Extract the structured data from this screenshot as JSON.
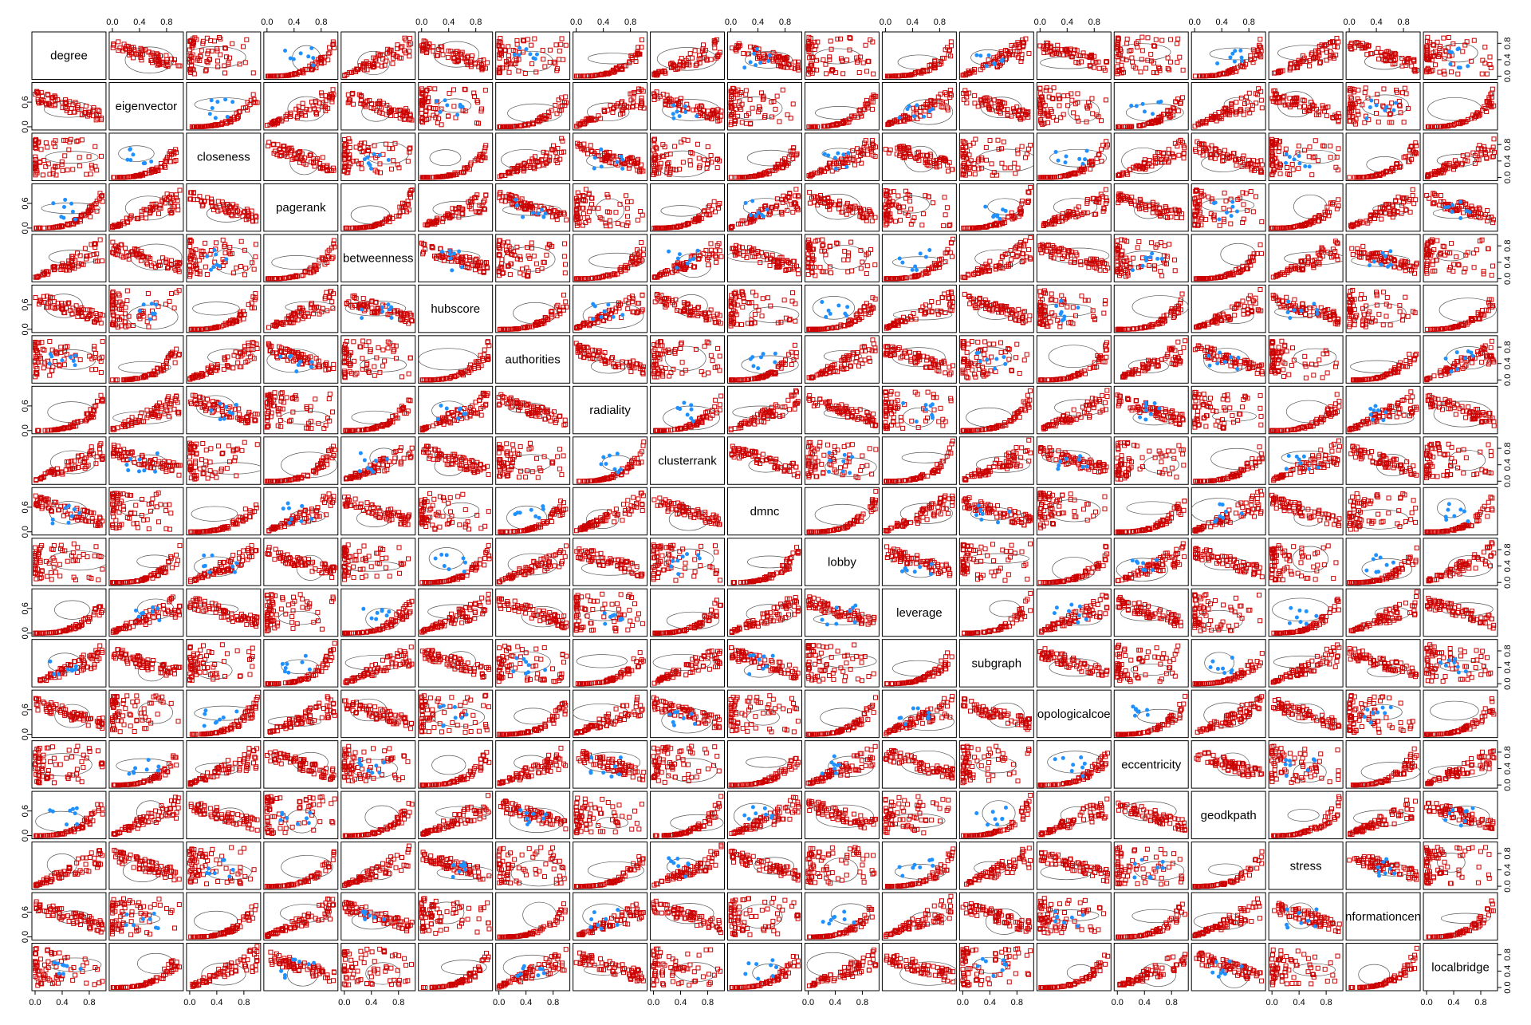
{
  "chart_data": {
    "type": "scatter",
    "title": "",
    "variables": [
      "degree",
      "eigenvector",
      "closeness",
      "pagerank",
      "betweenness",
      "hubscore",
      "authorities",
      "radiality",
      "clusterrank",
      "dmnc",
      "lobby",
      "leverage",
      "subgraph",
      "topologicalcoeff",
      "eccentricity",
      "geodkpath",
      "stress",
      "informationcentrality",
      "localbridge"
    ],
    "diagonal_display_labels": [
      "degree",
      "eigenvector",
      "closeness",
      "pagerank",
      "betweenness",
      "hubscore",
      "authorities",
      "radiality",
      "clusterrank",
      "dmnc",
      "lobby",
      "leverage",
      "subgraph",
      "opologicalcoe",
      "eccentricity",
      "geodkpath",
      "stress",
      "nformationcen",
      "localbridge"
    ],
    "axis_range": [
      0,
      1
    ],
    "tick_values": [
      0.0,
      0.4,
      0.8
    ],
    "tick_labels": [
      "0.0",
      "0.4",
      "0.8"
    ],
    "left_axis_tick_labels": [
      "0.0",
      "0.6"
    ],
    "series": [
      {
        "name": "",
        "color": "#cc0000",
        "marker": "open-square"
      },
      {
        "name": "",
        "color": "#1e90ff",
        "marker": "filled-circle"
      }
    ],
    "overlay": "data ellipses (gray contour lines)",
    "grid": false,
    "legend": "none"
  }
}
